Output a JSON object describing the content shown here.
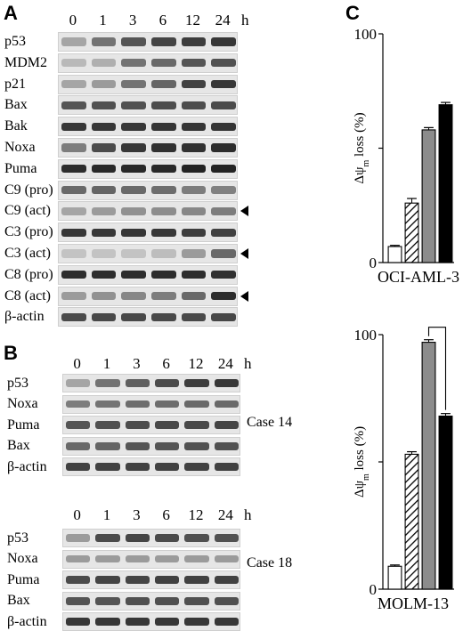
{
  "panels": {
    "A": {
      "letter": "A",
      "time_points": [
        "0",
        "1",
        "3",
        "6",
        "12",
        "24"
      ],
      "time_unit": "h",
      "rows": [
        {
          "label": "p53",
          "intensities": [
            0.3,
            0.55,
            0.7,
            0.78,
            0.82,
            0.85
          ],
          "arrow": false
        },
        {
          "label": "MDM2",
          "intensities": [
            0.2,
            0.25,
            0.55,
            0.6,
            0.7,
            0.72
          ],
          "arrow": false
        },
        {
          "label": "p21",
          "intensities": [
            0.3,
            0.35,
            0.55,
            0.62,
            0.8,
            0.85
          ],
          "arrow": false
        },
        {
          "label": "Bax",
          "intensities": [
            0.7,
            0.72,
            0.72,
            0.74,
            0.74,
            0.75
          ],
          "arrow": false
        },
        {
          "label": "Bak",
          "intensities": [
            0.85,
            0.85,
            0.85,
            0.86,
            0.86,
            0.86
          ],
          "arrow": false
        },
        {
          "label": "Noxa",
          "intensities": [
            0.5,
            0.75,
            0.85,
            0.88,
            0.88,
            0.9
          ],
          "arrow": false
        },
        {
          "label": "Puma",
          "intensities": [
            0.9,
            0.92,
            0.92,
            0.92,
            0.95,
            0.95
          ],
          "arrow": false
        },
        {
          "label": "C9 (pro)",
          "intensities": [
            0.6,
            0.62,
            0.6,
            0.58,
            0.5,
            0.48
          ],
          "arrow": false
        },
        {
          "label": "C9 (act)",
          "intensities": [
            0.3,
            0.35,
            0.4,
            0.42,
            0.45,
            0.5
          ],
          "arrow": true
        },
        {
          "label": "C3 (pro)",
          "intensities": [
            0.85,
            0.85,
            0.86,
            0.85,
            0.82,
            0.8
          ],
          "arrow": false
        },
        {
          "label": "C3 (act)",
          "intensities": [
            0.15,
            0.15,
            0.15,
            0.18,
            0.35,
            0.6
          ],
          "arrow": true
        },
        {
          "label": "C8 (pro)",
          "intensities": [
            0.9,
            0.9,
            0.9,
            0.9,
            0.9,
            0.88
          ],
          "arrow": false
        },
        {
          "label": "C8 (act)",
          "intensities": [
            0.35,
            0.4,
            0.45,
            0.5,
            0.6,
            0.9
          ],
          "arrow": true
        },
        {
          "label": "β-actin",
          "intensities": [
            0.75,
            0.76,
            0.76,
            0.76,
            0.76,
            0.77
          ],
          "arrow": false
        }
      ]
    },
    "B": {
      "letter": "B",
      "time_points": [
        "0",
        "1",
        "3",
        "6",
        "12",
        "24"
      ],
      "time_unit": "h",
      "blocks": [
        {
          "case_label": "Case 14",
          "rows": [
            {
              "label": "p53",
              "intensities": [
                0.3,
                0.55,
                0.65,
                0.75,
                0.82,
                0.85
              ]
            },
            {
              "label": "Noxa",
              "intensities": [
                0.5,
                0.55,
                0.58,
                0.58,
                0.6,
                0.6
              ]
            },
            {
              "label": "Puma",
              "intensities": [
                0.7,
                0.72,
                0.74,
                0.76,
                0.76,
                0.78
              ]
            },
            {
              "label": "Bax",
              "intensities": [
                0.6,
                0.62,
                0.7,
                0.7,
                0.72,
                0.72
              ]
            },
            {
              "label": "β-actin",
              "intensities": [
                0.8,
                0.8,
                0.8,
                0.8,
                0.8,
                0.8
              ]
            }
          ]
        },
        {
          "case_label": "Case 18",
          "rows": [
            {
              "label": "p53",
              "intensities": [
                0.35,
                0.75,
                0.78,
                0.75,
                0.72,
                0.72
              ]
            },
            {
              "label": "Noxa",
              "intensities": [
                0.35,
                0.35,
                0.35,
                0.35,
                0.35,
                0.35
              ]
            },
            {
              "label": "Puma",
              "intensities": [
                0.75,
                0.78,
                0.78,
                0.8,
                0.8,
                0.8
              ]
            },
            {
              "label": "Bax",
              "intensities": [
                0.7,
                0.7,
                0.72,
                0.72,
                0.72,
                0.72
              ]
            },
            {
              "label": "β-actin",
              "intensities": [
                0.85,
                0.85,
                0.85,
                0.85,
                0.85,
                0.85
              ]
            }
          ]
        }
      ]
    },
    "C": {
      "letter": "C",
      "significance_marker": "*"
    }
  },
  "colors": {
    "bar_open": "#ffffff",
    "bar_hatched": "#ffffff",
    "bar_gray": "#8c8c8c",
    "bar_black": "#000000"
  },
  "chart_data": [
    {
      "type": "bar",
      "title": "",
      "cell_line_label": "OCI-AML-3",
      "ylabel": "Δψm loss (%)",
      "ylabel_main": "Δψ",
      "ylabel_sub": "m",
      "ylabel_tail": " loss (%)",
      "ylim": [
        0,
        100
      ],
      "yticks": [
        0,
        100
      ],
      "tick_labels": [
        "0",
        "100"
      ],
      "grid": false,
      "categories": [
        "open",
        "hatched",
        "gray",
        "black"
      ],
      "values": [
        7,
        26,
        58,
        69
      ],
      "errors": [
        0.5,
        2,
        1,
        1
      ],
      "fills": [
        "open",
        "hatched",
        "gray",
        "black"
      ]
    },
    {
      "type": "bar",
      "title": "",
      "cell_line_label": "MOLM-13",
      "ylabel": "Δψm loss (%)",
      "ylabel_main": "Δψ",
      "ylabel_sub": "m",
      "ylabel_tail": " loss (%)",
      "ylim": [
        0,
        100
      ],
      "yticks": [
        0,
        100
      ],
      "tick_labels": [
        "0",
        "100"
      ],
      "grid": false,
      "categories": [
        "open",
        "hatched",
        "gray",
        "black"
      ],
      "values": [
        9,
        53,
        97,
        68
      ],
      "errors": [
        0.5,
        1,
        1,
        1
      ],
      "fills": [
        "open",
        "hatched",
        "gray",
        "black"
      ],
      "significance": {
        "from": 2,
        "to": 3,
        "label": "*"
      }
    }
  ]
}
